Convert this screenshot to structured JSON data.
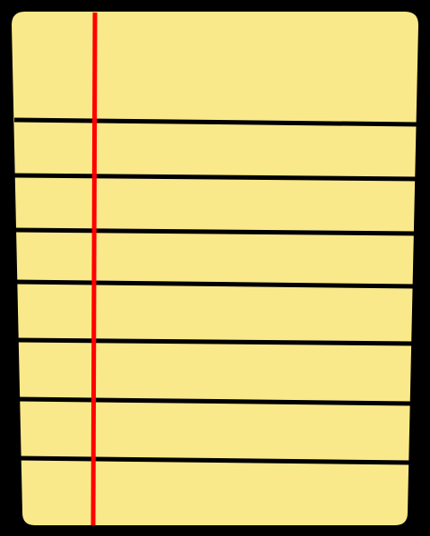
{
  "note_pad": {
    "icon": "legal-pad-icon",
    "colors": {
      "background": "#000000",
      "paper": "#FAE98A",
      "rule": "#000000",
      "margin_line": "#FF0000"
    },
    "ruled_line_count": 7,
    "has_margin_line": true
  }
}
